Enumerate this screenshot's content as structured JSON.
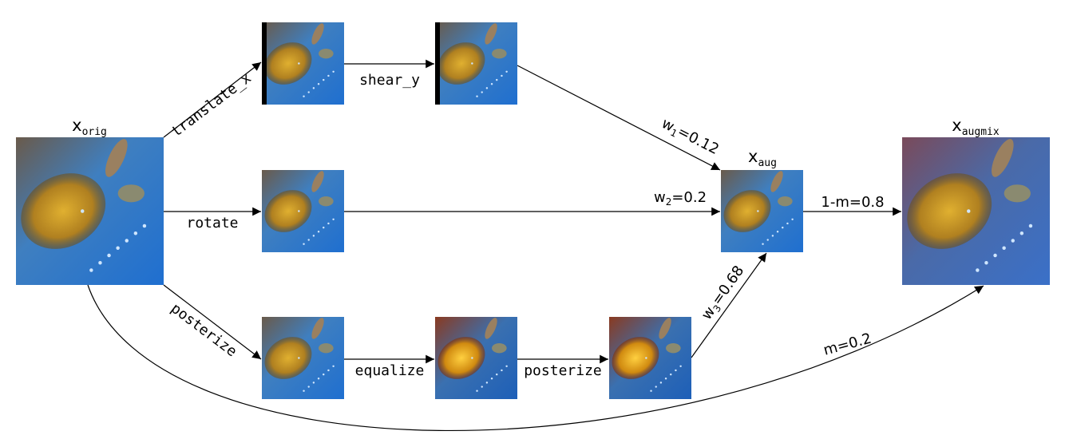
{
  "nodes": [
    {
      "base": "x",
      "sub": "orig"
    },
    {
      "base": "x",
      "sub": "aug"
    },
    {
      "base": "x",
      "sub": "augmix"
    }
  ],
  "operations": [
    "translate_x",
    "shear_y",
    "rotate",
    "posterize",
    "equalize",
    "posterize"
  ],
  "weights": [
    {
      "base": "w",
      "sub": "1",
      "rest": "=0.12"
    },
    {
      "base": "w",
      "sub": "2",
      "rest": "=0.2"
    },
    {
      "base": "w",
      "sub": "3",
      "rest": "=0.68"
    }
  ],
  "mixing": [
    "1-m=0.8",
    "m=0.2"
  ]
}
